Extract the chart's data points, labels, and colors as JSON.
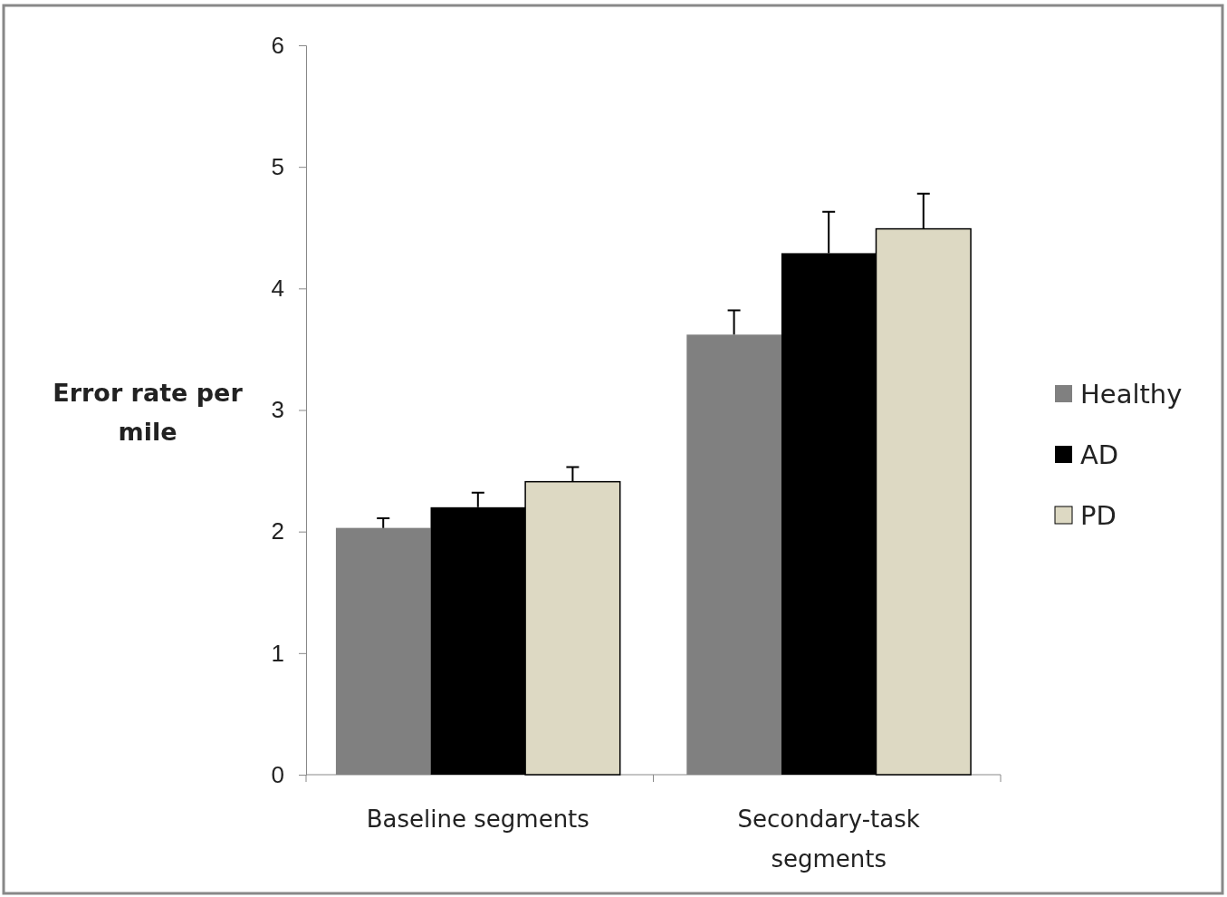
{
  "chart_data": {
    "type": "bar",
    "ylabel": "Error rate per mile",
    "categories": [
      "Baseline segments",
      "Secondary-task segments"
    ],
    "series": [
      {
        "name": "Healthy",
        "color": "#808080",
        "values": [
          2.03,
          3.62
        ],
        "errors": [
          0.08,
          0.2
        ]
      },
      {
        "name": "AD",
        "color": "#000000",
        "values": [
          2.2,
          4.29
        ],
        "errors": [
          0.12,
          0.34
        ]
      },
      {
        "name": "PD",
        "color": "#ddd9c3",
        "values": [
          2.41,
          4.49
        ],
        "errors": [
          0.12,
          0.29
        ]
      }
    ],
    "ylim": [
      0,
      6
    ],
    "yticks": [
      0,
      1,
      2,
      3,
      4,
      5,
      6
    ],
    "legend": "right"
  }
}
